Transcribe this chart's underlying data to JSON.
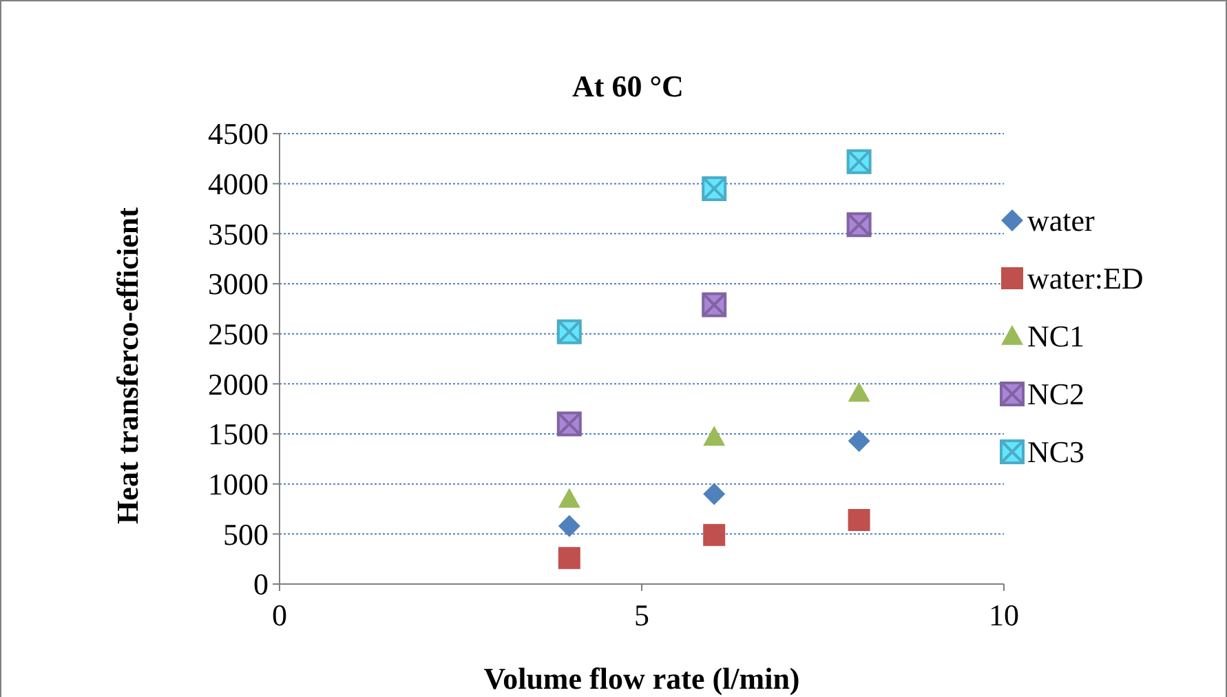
{
  "chart_data": {
    "type": "scatter",
    "title": "At 60 °C",
    "xlabel": "Volume  flow rate (l/min)",
    "ylabel": "Heat transferco-efficient",
    "x": [
      4,
      6,
      8
    ],
    "xlim": [
      0,
      10
    ],
    "xticks": [
      0,
      5,
      10
    ],
    "ylim": [
      0,
      4500
    ],
    "yticks": [
      0,
      500,
      1000,
      1500,
      2000,
      2500,
      3000,
      3500,
      4000,
      4500
    ],
    "grid": "y",
    "legend": "right",
    "series": [
      {
        "name": "water",
        "color": "#4f81bd",
        "marker": "diamond",
        "values": [
          580,
          900,
          1430
        ]
      },
      {
        "name": "water:ED",
        "color": "#c0504d",
        "marker": "square",
        "values": [
          260,
          490,
          640
        ]
      },
      {
        "name": "NC1",
        "color": "#9bbb59",
        "marker": "triangle",
        "values": [
          850,
          1470,
          1910
        ]
      },
      {
        "name": "NC2",
        "color": "#8064a2",
        "marker": "cross",
        "values": [
          1600,
          2790,
          3590
        ]
      },
      {
        "name": "NC3",
        "color": "#4bacc6",
        "marker": "cross",
        "values": [
          2520,
          3950,
          4220
        ]
      }
    ]
  }
}
